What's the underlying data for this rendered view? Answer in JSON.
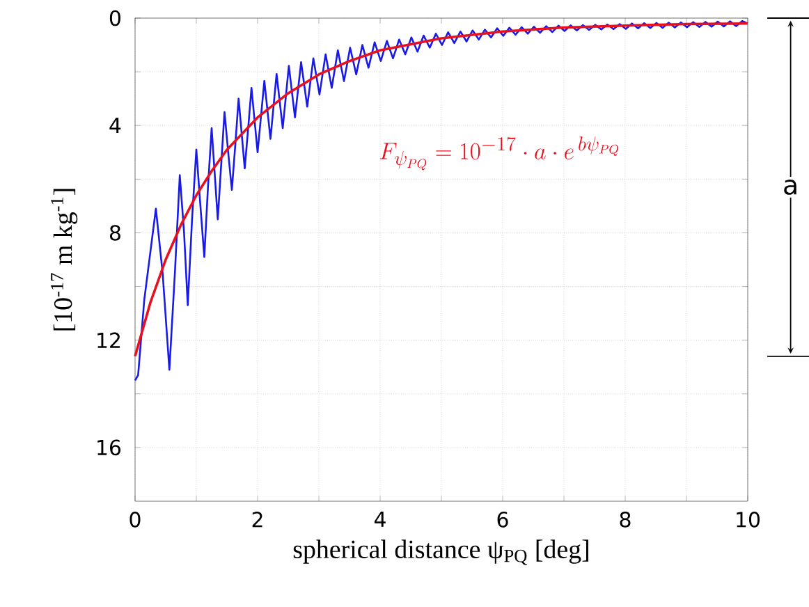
{
  "chart_data": {
    "type": "line",
    "xlabel": "spherical distance ψ$_{PQ}$   [deg]",
    "ylabel": "[10$^{-17}$ m kg$^{-1}$]",
    "xlim": [
      0,
      10
    ],
    "ylim": [
      18,
      0
    ],
    "xticks": [
      0,
      {
        "value": 1,
        "label": null
      },
      2,
      {
        "value": 3,
        "label": null
      },
      4,
      {
        "value": 5,
        "label": null
      },
      6,
      {
        "value": 7,
        "label": null
      },
      8,
      {
        "value": 9,
        "label": null
      },
      10
    ],
    "yticks": [
      0,
      {
        "value": 2,
        "label": null
      },
      4,
      {
        "value": 6,
        "label": null
      },
      8,
      {
        "value": 10,
        "label": null
      },
      12,
      {
        "value": 14,
        "label": null
      },
      16
    ],
    "grid": true,
    "line_style": "solid",
    "annotations": [
      "F_{\\psi_{PQ}}= 10^{-17}\\cdot a\\cdot e^{\\,b\\psi_{PQ}}",
      "a"
    ],
    "series": [
      {
        "color": "#1a1ae6",
        "x": [
          0,
          0.05,
          0.15,
          0.34,
          0.45,
          0.56,
          0.65,
          0.73,
          0.8,
          0.86,
          0.93,
          1.0,
          1.06,
          1.13,
          1.19,
          1.25,
          1.3,
          1.35,
          1.41,
          1.46,
          1.52,
          1.58,
          1.64,
          1.69,
          1.74,
          1.79,
          1.85,
          1.9,
          1.95,
          2.0,
          2.11,
          2.21,
          2.31,
          2.41,
          2.51,
          2.61,
          2.71,
          2.81,
          2.91,
          3.01,
          3.11,
          3.21,
          3.31,
          3.41,
          3.51,
          3.61,
          3.71,
          3.81,
          3.91,
          4.01,
          4.11,
          4.21,
          4.31,
          4.41,
          4.51,
          4.61,
          4.71,
          4.81,
          4.91,
          5.01,
          5.11,
          5.21,
          5.31,
          5.41,
          5.51,
          5.61,
          5.71,
          5.81,
          5.91,
          6.01,
          6.11,
          6.21,
          6.31,
          6.41,
          6.51,
          6.61,
          6.71,
          6.81,
          6.91,
          7.01,
          7.11,
          7.21,
          7.31,
          7.41,
          7.51,
          7.61,
          7.71,
          7.81,
          7.91,
          8.01,
          8.11,
          8.21,
          8.31,
          8.41,
          8.51,
          8.61,
          8.71,
          8.81,
          8.91,
          9.01,
          9.11,
          9.21,
          9.31,
          9.41,
          9.51,
          9.61,
          9.71,
          9.81,
          9.91,
          10
        ],
        "values": [
          13.5,
          13.3,
          10.5,
          7.1,
          9.5,
          13.1,
          9.5,
          5.85,
          8.0,
          10.7,
          7.5,
          4.9,
          6.8,
          8.9,
          6.3,
          4.1,
          5.8,
          7.5,
          5.3,
          3.5,
          5.0,
          6.4,
          4.6,
          3.0,
          4.3,
          5.6,
          4.0,
          2.6,
          3.8,
          5.0,
          2.34,
          4.5,
          2.08,
          4.1,
          1.78,
          3.7,
          1.64,
          3.3,
          1.5,
          2.85,
          1.35,
          2.6,
          1.2,
          2.35,
          1.1,
          2.1,
          1.0,
          1.85,
          0.9,
          1.6,
          0.85,
          1.5,
          0.8,
          1.35,
          0.72,
          1.25,
          0.65,
          1.1,
          0.58,
          1.0,
          0.53,
          0.93,
          0.5,
          0.87,
          0.46,
          0.8,
          0.43,
          0.72,
          0.38,
          0.66,
          0.36,
          0.62,
          0.34,
          0.58,
          0.32,
          0.55,
          0.3,
          0.52,
          0.28,
          0.48,
          0.27,
          0.46,
          0.26,
          0.44,
          0.25,
          0.42,
          0.24,
          0.41,
          0.22,
          0.4,
          0.2,
          0.38,
          0.19,
          0.37,
          0.18,
          0.36,
          0.17,
          0.35,
          0.16,
          0.34,
          0.15,
          0.33,
          0.14,
          0.32,
          0.13,
          0.31,
          0.12,
          0.3,
          0.11,
          0.2
        ]
      },
      {
        "color": "#e8101e",
        "x": [
          0,
          0.25,
          0.5,
          0.75,
          1,
          1.25,
          1.5,
          1.75,
          2,
          2.5,
          3,
          3.5,
          4,
          5,
          6,
          7,
          8,
          9,
          10
        ],
        "values": [
          12.6,
          10.6,
          9.0,
          7.7,
          6.6,
          5.7,
          4.9,
          4.3,
          3.7,
          2.8,
          2.1,
          1.6,
          1.2,
          0.75,
          0.5,
          0.35,
          0.28,
          0.22,
          0.2
        ]
      }
    ]
  }
}
